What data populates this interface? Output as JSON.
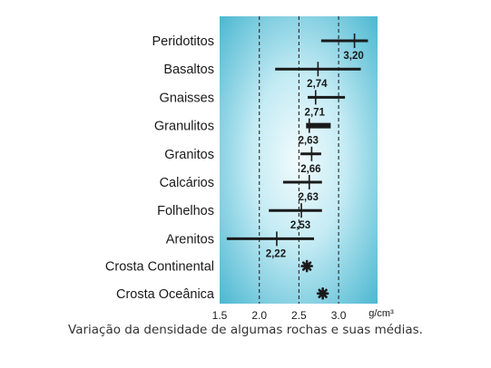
{
  "chart_data": {
    "type": "range-bar",
    "title": "",
    "xlabel": "",
    "ylabel": "",
    "x_unit": "g/cm³",
    "xlim": [
      1.5,
      3.4
    ],
    "x_ticks": [
      1.5,
      2.0,
      2.5,
      3.0
    ],
    "x_tick_labels": [
      "1.5",
      "2.0",
      "2.5",
      "3.0"
    ],
    "gridlines_x": [
      2.0,
      2.5,
      3.0
    ],
    "grid_style": "dashed vertical",
    "colors": {
      "panel_center": "#f2fbfd",
      "panel_edge": "#3fb2cd",
      "bar": "#1a1a1a",
      "grid": "#333333"
    },
    "rocks": [
      {
        "name": "Peridotitos",
        "min": 2.78,
        "max": 3.37,
        "mean": 3.2,
        "mean_label": "3,20"
      },
      {
        "name": "Basaltos",
        "min": 2.2,
        "max": 3.28,
        "mean": 2.74,
        "mean_label": "2,74"
      },
      {
        "name": "Gnaisses",
        "min": 2.61,
        "max": 3.08,
        "mean": 2.71,
        "mean_label": "2,71"
      },
      {
        "name": "Granulitos",
        "min": 2.59,
        "max": 2.9,
        "mean": 2.63,
        "mean_label": "2,63"
      },
      {
        "name": "Granitos",
        "min": 2.52,
        "max": 2.78,
        "mean": 2.66,
        "mean_label": "2,66"
      },
      {
        "name": "Calcários",
        "min": 2.3,
        "max": 2.79,
        "mean": 2.63,
        "mean_label": "2,63"
      },
      {
        "name": "Folhelhos",
        "min": 2.12,
        "max": 2.79,
        "mean": 2.53,
        "mean_label": "2,53"
      },
      {
        "name": "Arenitos",
        "min": 1.59,
        "max": 2.69,
        "mean": 2.22,
        "mean_label": "2,22"
      }
    ],
    "points": [
      {
        "name": "Crosta Continental",
        "value": 2.6,
        "marker": "asterisk"
      },
      {
        "name": "Crosta Oceânica",
        "value": 2.8,
        "marker": "asterisk"
      }
    ]
  },
  "caption": "Variação da densidade de algumas rochas e suas médias."
}
